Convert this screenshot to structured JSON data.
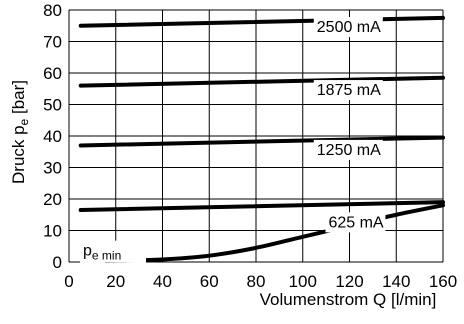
{
  "chart_data": {
    "type": "line",
    "title": "",
    "xlabel": "Volumenstrom Q [l/min]",
    "ylabel_main": "Druck p",
    "ylabel_sub": "e",
    "ylabel_unit": " [bar]",
    "xlim": [
      0,
      160
    ],
    "ylim": [
      0,
      80
    ],
    "xticks": [
      0,
      20,
      40,
      60,
      80,
      100,
      120,
      140,
      160
    ],
    "yticks": [
      0,
      10,
      20,
      30,
      40,
      50,
      60,
      70,
      80
    ],
    "xtick_labels": [
      "0",
      "20",
      "40",
      "60",
      "80",
      "100",
      "120",
      "140",
      "160"
    ],
    "ytick_labels": [
      "0",
      "10",
      "20",
      "30",
      "40",
      "50",
      "60",
      "70",
      "80"
    ],
    "grid": true,
    "line_color": "#000000",
    "series": [
      {
        "name": "2500 mA",
        "x": [
          5,
          160
        ],
        "y": [
          75,
          77.5
        ]
      },
      {
        "name": "1875 mA",
        "x": [
          5,
          160
        ],
        "y": [
          56,
          58.5
        ]
      },
      {
        "name": "1250 mA",
        "x": [
          5,
          160
        ],
        "y": [
          37,
          39.5
        ]
      },
      {
        "name": "625 mA",
        "x": [
          5,
          160
        ],
        "y": [
          16.5,
          19
        ]
      },
      {
        "name": "pe min",
        "x": [
          16,
          40,
          60,
          80,
          100,
          120,
          140,
          160
        ],
        "y": [
          0.3,
          0.8,
          2.0,
          4.5,
          8.0,
          11.5,
          15.0,
          18.0
        ]
      }
    ],
    "annotations": [
      {
        "series": "2500 mA",
        "text": "2500 mA",
        "x": 106,
        "y": 73
      },
      {
        "series": "1875 mA",
        "text": "1875 mA",
        "x": 106,
        "y": 53
      },
      {
        "series": "1250 mA",
        "text": "1250 mA",
        "x": 106,
        "y": 34
      },
      {
        "series": "625 mA",
        "text": "625 mA",
        "x": 111,
        "y": 11
      }
    ],
    "pemin_label": {
      "main": "p",
      "sub": "e min",
      "x": 6,
      "y": 2
    }
  }
}
